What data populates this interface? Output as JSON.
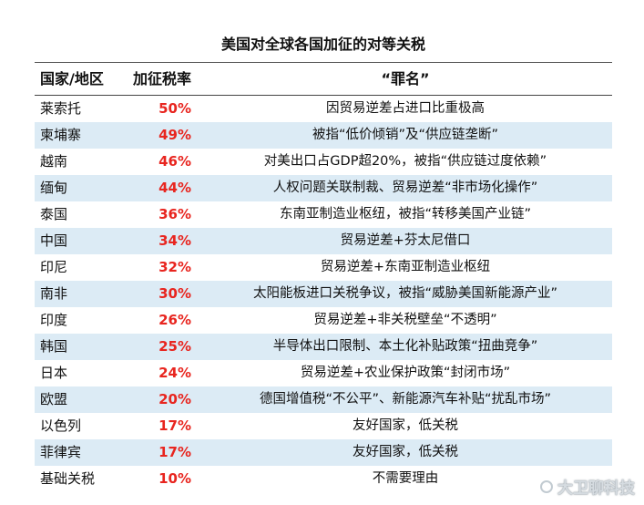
{
  "title": "美国对全球各国加征的对等关税",
  "headers": {
    "country": "国家/地区",
    "rate": "加征税率",
    "reason": "“罪名”"
  },
  "rows": [
    {
      "country": "莱索托",
      "rate": "50%",
      "reason": "因贸易逆差占进口比重极高"
    },
    {
      "country": "柬埔寨",
      "rate": "49%",
      "reason": "被指“低价倾销”及“供应链垄断”"
    },
    {
      "country": "越南",
      "rate": "46%",
      "reason": "对美出口占GDP超20%，被指“供应链过度依赖”"
    },
    {
      "country": "缅甸",
      "rate": "44%",
      "reason": "人权问题关联制裁、贸易逆差“非市场化操作”"
    },
    {
      "country": "泰国",
      "rate": "36%",
      "reason": "东南亚制造业枢纽，被指“转移美国产业链”"
    },
    {
      "country": "中国",
      "rate": "34%",
      "reason": "贸易逆差+芬太尼借口"
    },
    {
      "country": "印尼",
      "rate": "32%",
      "reason": "贸易逆差+东南亚制造业枢纽"
    },
    {
      "country": "南非",
      "rate": "30%",
      "reason": "太阳能板进口关税争议，被指“威胁美国新能源产业”"
    },
    {
      "country": "印度",
      "rate": "26%",
      "reason": "贸易逆差+非关税壁垒“不透明”"
    },
    {
      "country": "韩国",
      "rate": "25%",
      "reason": "半导体出口限制、本土化补贴政策“扭曲竞争”"
    },
    {
      "country": "日本",
      "rate": "24%",
      "reason": "贸易逆差+农业保护政策“封闭市场”"
    },
    {
      "country": "欧盟",
      "rate": "20%",
      "reason": "德国增值税“不公平”、新能源汽车补贴“扰乱市场”"
    },
    {
      "country": "以色列",
      "rate": "17%",
      "reason": "友好国家，低关税"
    },
    {
      "country": "菲律宾",
      "rate": "17%",
      "reason": "友好国家，低关税"
    },
    {
      "country": "基础关税",
      "rate": "10%",
      "reason": "不需要理由"
    }
  ],
  "watermark": "大卫聊科技",
  "colors": {
    "rate_text": "#e8251f",
    "row_stripe": "#dcebf5"
  }
}
